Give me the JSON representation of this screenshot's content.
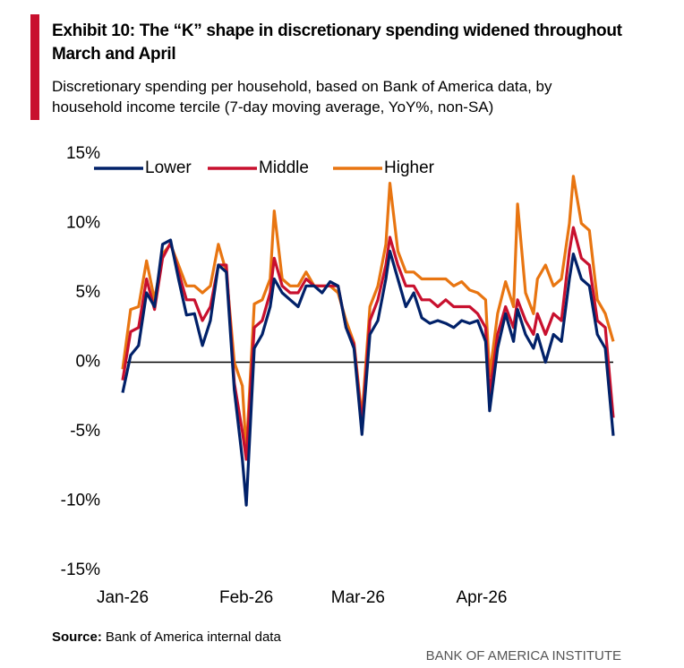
{
  "chart_data": {
    "type": "line",
    "title": "Exhibit 10: The “K” shape in discretionary spending widened throughout March and April",
    "subtitle": "Discretionary spending per household, based on Bank of America data, by household income tercile (7-day moving average, YoY%, non-SA)",
    "source_label": "Source:",
    "source_text": "Bank of America internal data",
    "footer": "BANK OF AMERICA INSTITUTE",
    "x": [
      0,
      2,
      4,
      6,
      8,
      10,
      12,
      14,
      16,
      18,
      20,
      22,
      24,
      26,
      28,
      30,
      31,
      33,
      35,
      37,
      38,
      40,
      42,
      44,
      46,
      48,
      50,
      52,
      54,
      56,
      58,
      60,
      62,
      64,
      66,
      67,
      69,
      71,
      73,
      75,
      77,
      79,
      81,
      83,
      85,
      87,
      89,
      91,
      92,
      94,
      96,
      98,
      99,
      101,
      103,
      104,
      106,
      108,
      110,
      112,
      113,
      115,
      117,
      119,
      121,
      123
    ],
    "xlim": [
      0,
      123
    ],
    "xticks": [
      {
        "value": 0,
        "label": "Jan-26"
      },
      {
        "value": 31,
        "label": "Feb-26"
      },
      {
        "value": 59,
        "label": "Mar-26"
      },
      {
        "value": 90,
        "label": "Apr-26"
      }
    ],
    "ylim": [
      -15,
      15
    ],
    "yticks": [
      {
        "value": -15,
        "label": "-15%"
      },
      {
        "value": -10,
        "label": "-10%"
      },
      {
        "value": -5,
        "label": "-5%"
      },
      {
        "value": 0,
        "label": "0%"
      },
      {
        "value": 5,
        "label": "5%"
      },
      {
        "value": 10,
        "label": "10%"
      },
      {
        "value": 15,
        "label": "15%"
      }
    ],
    "zero_line": true,
    "legend": "top-left",
    "series": [
      {
        "name": "Lower",
        "color": "#012169",
        "values": [
          -2.2,
          0.5,
          1.2,
          5,
          4,
          8.5,
          8.8,
          6,
          3.4,
          3.5,
          1.2,
          3,
          7,
          6.5,
          -2,
          -7,
          -10.3,
          1,
          2,
          4,
          6,
          5,
          4.5,
          4,
          5.5,
          5.5,
          5,
          5.8,
          5.5,
          2.5,
          1,
          -5.2,
          2,
          3,
          6,
          8,
          6,
          4,
          5,
          3.2,
          2.8,
          3,
          2.8,
          2.5,
          3,
          2.8,
          3,
          1.5,
          -3.5,
          1,
          3.5,
          1.5,
          3.8,
          2,
          1,
          2,
          0,
          2,
          1.5,
          6,
          7.8,
          6,
          5.5,
          2,
          1,
          -5.3
        ]
      },
      {
        "name": "Middle",
        "color": "#c8102e",
        "values": [
          -1.3,
          2.2,
          2.5,
          6,
          3.8,
          7.5,
          8.6,
          6.5,
          4.5,
          4.5,
          3,
          4,
          7,
          7,
          -1.5,
          -5,
          -7,
          2.5,
          3,
          5,
          7.5,
          5.5,
          5,
          5,
          6,
          5.5,
          5.5,
          5.5,
          5.5,
          2.5,
          1.3,
          -4.5,
          3,
          4.5,
          7,
          9,
          7,
          5.5,
          5.5,
          4.5,
          4.5,
          4,
          4.5,
          4,
          4,
          4,
          3.5,
          2.5,
          -2.3,
          2,
          4,
          2.5,
          4.5,
          3,
          2,
          3.5,
          2,
          3.5,
          3,
          8,
          9.7,
          7.5,
          7,
          3,
          2.5,
          -4
        ]
      },
      {
        "name": "Higher",
        "color": "#e87511",
        "values": [
          -0.5,
          3.8,
          4,
          7.3,
          4.5,
          7.8,
          8.5,
          7,
          5.5,
          5.5,
          5,
          5.5,
          8.5,
          6.5,
          0,
          -1.7,
          -6.5,
          4.2,
          4.5,
          6,
          10.9,
          6,
          5.5,
          5.5,
          6.5,
          5.5,
          5.5,
          5.5,
          5,
          3,
          1.4,
          -4,
          4,
          5.5,
          8.5,
          12.9,
          8,
          6.5,
          6.5,
          6,
          6,
          6,
          6,
          5.5,
          5.8,
          5.2,
          5,
          4.5,
          -1,
          3.5,
          5.8,
          4,
          11.4,
          5,
          3.5,
          6,
          7,
          5.5,
          6,
          10,
          13.4,
          10,
          9.5,
          4.5,
          3.5,
          1.5
        ]
      }
    ]
  }
}
